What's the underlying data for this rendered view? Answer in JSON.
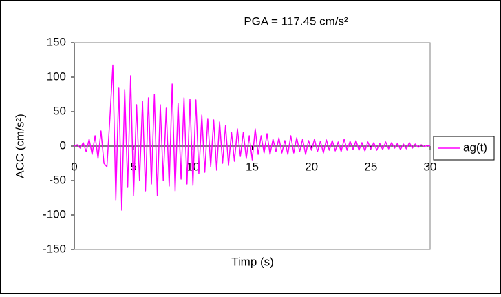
{
  "chart_data": {
    "type": "line",
    "title": "PGA = 117.45 cm/s²",
    "x_label": "Timp (s)",
    "y_label": "ACC (cm/s²)",
    "x": [
      0,
      0.25,
      0.5,
      0.75,
      1,
      1.25,
      1.5,
      1.75,
      2,
      2.25,
      2.5,
      2.75,
      3,
      3.25,
      3.5,
      3.75,
      4,
      4.25,
      4.5,
      4.75,
      5,
      5.25,
      5.5,
      5.75,
      6,
      6.25,
      6.5,
      6.75,
      7,
      7.25,
      7.5,
      7.75,
      8,
      8.25,
      8.5,
      8.75,
      9,
      9.25,
      9.5,
      9.75,
      10,
      10.25,
      10.5,
      10.75,
      11,
      11.25,
      11.5,
      11.75,
      12,
      12.25,
      12.5,
      12.75,
      13,
      13.25,
      13.5,
      13.75,
      14,
      14.25,
      14.5,
      14.75,
      15,
      15.25,
      15.5,
      15.75,
      16,
      16.25,
      16.5,
      16.75,
      17,
      17.25,
      17.5,
      17.75,
      18,
      18.25,
      18.5,
      18.75,
      19,
      19.25,
      19.5,
      19.75,
      20,
      20.25,
      20.5,
      20.75,
      21,
      21.25,
      21.5,
      21.75,
      22,
      22.25,
      22.5,
      22.75,
      23,
      23.25,
      23.5,
      23.75,
      24,
      24.25,
      24.5,
      24.75,
      25,
      25.25,
      25.5,
      25.75,
      26,
      26.25,
      26.5,
      26.75,
      27,
      27.25,
      27.5,
      27.75,
      28,
      28.25,
      28.5,
      28.75,
      29,
      29.25,
      29.5,
      29.75,
      30
    ],
    "series": [
      {
        "name": "ag(t)",
        "color": "#ff00ff",
        "values": [
          0,
          2,
          -3,
          5,
          -8,
          10,
          -12,
          15,
          -18,
          22,
          -25,
          -30,
          40,
          117.45,
          -78,
          85,
          -93,
          82,
          -60,
          102,
          -72,
          60,
          -50,
          65,
          -65,
          70,
          -55,
          75,
          -72,
          60,
          -50,
          55,
          -58,
          90,
          -65,
          62,
          -48,
          70,
          -55,
          68,
          -57,
          67,
          -40,
          45,
          -38,
          40,
          -30,
          38,
          -35,
          35,
          -25,
          30,
          -28,
          20,
          -22,
          25,
          -15,
          20,
          -18,
          15,
          -20,
          25,
          -12,
          15,
          -10,
          18,
          -12,
          10,
          -8,
          12,
          -10,
          8,
          -12,
          15,
          -10,
          12,
          -8,
          10,
          -12,
          8,
          -6,
          10,
          -8,
          7,
          -10,
          9,
          -6,
          8,
          -7,
          6,
          -8,
          10,
          -6,
          7,
          -5,
          8,
          -6,
          5,
          -7,
          6,
          -4,
          5,
          -6,
          4,
          -5,
          6,
          -4,
          5,
          -3,
          4,
          -5,
          3,
          -4,
          5,
          -3,
          3,
          -2,
          2,
          -1,
          1,
          0
        ]
      }
    ],
    "xlim": [
      0,
      30
    ],
    "xticks": [
      0,
      5,
      10,
      15,
      20,
      25,
      30
    ],
    "ylim": [
      -150,
      150
    ],
    "yticks": [
      -150,
      -100,
      -50,
      0,
      50,
      100,
      150
    ],
    "grid": false,
    "legend": "right"
  }
}
